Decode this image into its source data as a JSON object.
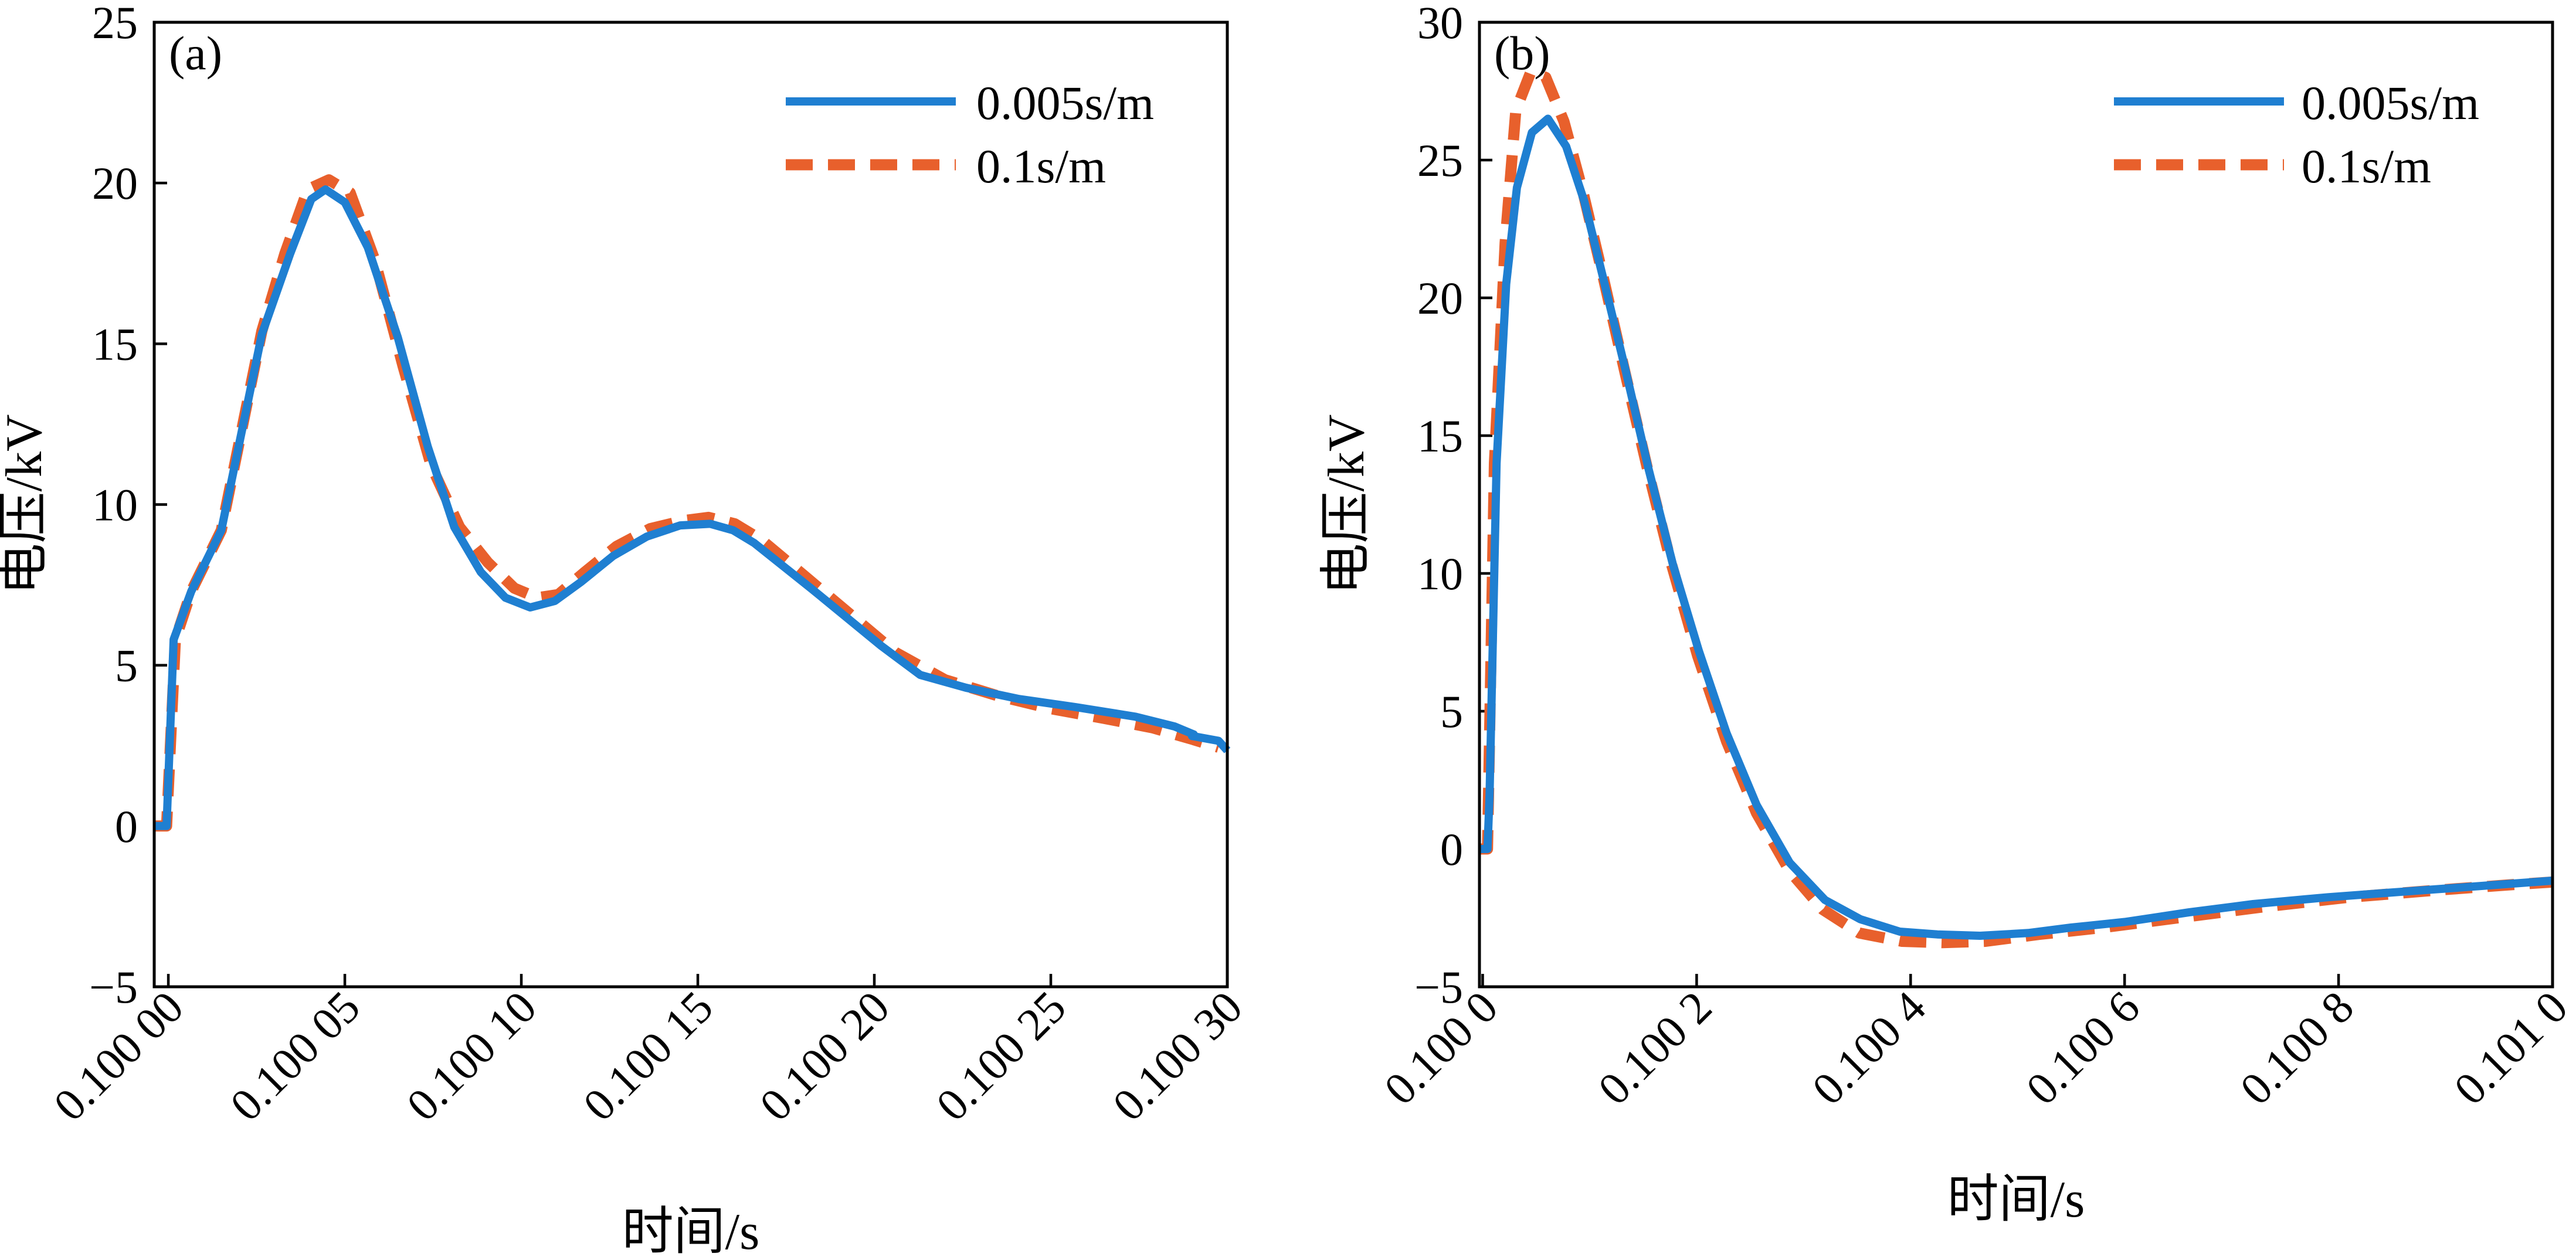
{
  "chart_data": [
    {
      "type": "line",
      "panel_label": "(a)",
      "xlabel": "时间/s",
      "ylabel": "电压/kV",
      "xlim": [
        0.099996,
        0.1003
      ],
      "ylim": [
        -5,
        25
      ],
      "grid": false,
      "legend_position": "top-right",
      "x_ticks": [
        {
          "value": 0.1,
          "label": "0.100 00"
        },
        {
          "value": 0.10005,
          "label": "0.100 05"
        },
        {
          "value": 0.1001,
          "label": "0.100 10"
        },
        {
          "value": 0.10015,
          "label": "0.100 15"
        },
        {
          "value": 0.1002,
          "label": "0.100 20"
        },
        {
          "value": 0.10025,
          "label": "0.100 25"
        },
        {
          "value": 0.1003,
          "label": "0.100 30"
        }
      ],
      "y_ticks": [
        {
          "value": -5,
          "label": "−5"
        },
        {
          "value": 0,
          "label": "0"
        },
        {
          "value": 5,
          "label": "5"
        },
        {
          "value": 10,
          "label": "10"
        },
        {
          "value": 15,
          "label": "15"
        },
        {
          "value": 20,
          "label": "20"
        },
        {
          "value": 25,
          "label": "25"
        }
      ],
      "series": [
        {
          "name": "0.005s/m",
          "color": "#1f7fd1",
          "style": "solid",
          "x": [
            0.099996,
            0.0999995,
            0.1000015,
            0.1000065,
            0.100015,
            0.1000265,
            0.1000345,
            0.1000405,
            0.1000445,
            0.10005,
            0.1000565,
            0.100065,
            0.1000735,
            0.100081,
            0.1000885,
            0.1000955,
            0.1001025,
            0.1001095,
            0.100117,
            0.100126,
            0.1001355,
            0.100145,
            0.1001535,
            0.10016,
            0.100166,
            0.100174,
            0.100182,
            0.100192,
            0.100202,
            0.100213,
            0.100226,
            0.100241,
            0.100257,
            0.100274,
            0.100285,
            0.1002905,
            0.10029,
            0.1002975,
            0.1003
          ],
          "y": [
            0,
            0,
            5.8,
            7.3,
            9.2,
            15.3,
            17.8,
            19.5,
            19.8,
            19.4,
            18,
            15.2,
            11.8,
            9.3,
            7.9,
            7.1,
            6.8,
            7,
            7.6,
            8.4,
            9,
            9.35,
            9.4,
            9.2,
            8.8,
            8.1,
            7.4,
            6.5,
            5.6,
            4.7,
            4.3,
            3.95,
            3.7,
            3.4,
            3.1,
            2.85,
            2.8,
            2.65,
            2.35
          ]
        },
        {
          "name": "0.1s/m",
          "color": "#e8602c",
          "style": "dashed",
          "x": [
            0.099996,
            0.0999995,
            0.100002,
            0.1000065,
            0.100015,
            0.1000265,
            0.100033,
            0.1000395,
            0.1000455,
            0.1000515,
            0.1000585,
            0.1000665,
            0.1000745,
            0.1000825,
            0.1000905,
            0.100098,
            0.1001045,
            0.1001105,
            0.100118,
            0.100127,
            0.1001365,
            0.100146,
            0.100153,
            0.1001605,
            0.100168,
            0.10018,
            0.100193,
            0.100206,
            0.10022,
            0.100235,
            0.10025,
            0.100265,
            0.100279,
            0.10029,
            0.1002975
          ],
          "y": [
            0,
            0,
            5.8,
            7.3,
            9.2,
            15.4,
            17.8,
            19.8,
            20.1,
            19.7,
            17.6,
            14.3,
            11.2,
            9.3,
            8.2,
            7.4,
            7.1,
            7.2,
            7.9,
            8.7,
            9.25,
            9.5,
            9.6,
            9.4,
            8.9,
            7.8,
            6.6,
            5.4,
            4.55,
            4.05,
            3.65,
            3.35,
            3.05,
            2.7,
            2.45
          ]
        }
      ]
    },
    {
      "type": "line",
      "panel_label": "(b)",
      "xlabel": "时间/s",
      "ylabel": "电压/kV",
      "xlim": [
        0.099997,
        0.101
      ],
      "ylim": [
        -5,
        30
      ],
      "grid": false,
      "legend_position": "top-right",
      "x_ticks": [
        {
          "value": 0.1,
          "label": "0.100 0"
        },
        {
          "value": 0.1002,
          "label": "0.100 2"
        },
        {
          "value": 0.1004,
          "label": "0.100 4"
        },
        {
          "value": 0.1006,
          "label": "0.100 6"
        },
        {
          "value": 0.1008,
          "label": "0.100 8"
        },
        {
          "value": 0.101,
          "label": "0.101 0"
        }
      ],
      "y_ticks": [
        {
          "value": -5,
          "label": "−5"
        },
        {
          "value": 0,
          "label": "0"
        },
        {
          "value": 5,
          "label": "5"
        },
        {
          "value": 10,
          "label": "10"
        },
        {
          "value": 15,
          "label": "15"
        },
        {
          "value": 20,
          "label": "20"
        },
        {
          "value": 25,
          "label": "25"
        },
        {
          "value": 30,
          "label": "30"
        }
      ],
      "series": [
        {
          "name": "0.005s/m",
          "color": "#1f7fd1",
          "style": "solid",
          "x": [
            0.099997,
            0.1000045,
            0.1000065,
            0.100013,
            0.100022,
            0.100032,
            0.100046,
            0.100061,
            0.100078,
            0.100095,
            0.100114,
            0.100134,
            0.100155,
            0.100178,
            0.100202,
            0.100228,
            0.100256,
            0.100287,
            0.10032,
            0.100353,
            0.10039,
            0.100425,
            0.100465,
            0.10051,
            0.10055,
            0.1006,
            0.10066,
            0.10072,
            0.10079,
            0.10086,
            0.10093,
            0.101
          ],
          "y": [
            0,
            0,
            2,
            14,
            20.5,
            24,
            26,
            26.5,
            25.5,
            23.5,
            20.5,
            17.3,
            13.8,
            10.3,
            7.2,
            4.2,
            1.6,
            -0.5,
            -1.85,
            -2.55,
            -3,
            -3.1,
            -3.15,
            -3.05,
            -2.85,
            -2.65,
            -2.3,
            -2,
            -1.75,
            -1.55,
            -1.35,
            -1.15
          ]
        },
        {
          "name": "0.1s/m",
          "color": "#e8602c",
          "style": "dashed",
          "x": [
            0.099997,
            0.1000045,
            0.1000055,
            0.100011,
            0.100021,
            0.100031,
            0.100045,
            0.100059,
            0.100076,
            0.100094,
            0.100113,
            0.100133,
            0.100154,
            0.100176,
            0.100201,
            0.100228,
            0.100256,
            0.100287,
            0.100318,
            0.100352,
            0.100392,
            0.10043,
            0.10047,
            0.10052,
            0.10058,
            0.10065,
            0.10073,
            0.10081,
            0.10089,
            0.10096,
            0.101
          ],
          "y": [
            0,
            0,
            2,
            14,
            22,
            26.8,
            28.2,
            28,
            26.4,
            23.8,
            20.7,
            17.3,
            13.8,
            10.4,
            7,
            3.9,
            1.3,
            -0.8,
            -2.2,
            -3.05,
            -3.35,
            -3.4,
            -3.35,
            -3.1,
            -2.85,
            -2.5,
            -2.1,
            -1.75,
            -1.5,
            -1.3,
            -1.2
          ]
        }
      ]
    }
  ]
}
